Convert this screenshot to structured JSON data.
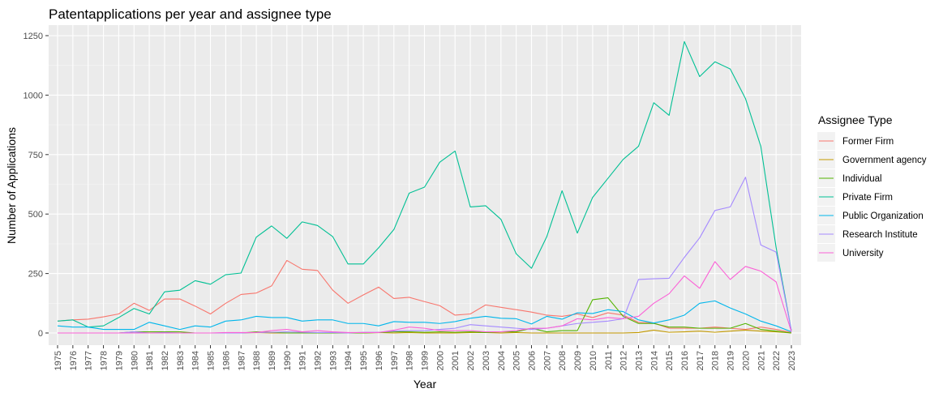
{
  "chart_data": {
    "type": "line",
    "title": "Patentapplications per year and assignee type",
    "xlabel": "Year",
    "ylabel": "Number of Applications",
    "ylim": [
      -50,
      1280
    ],
    "yticks": [
      0,
      250,
      500,
      750,
      1000,
      1250
    ],
    "grid": true,
    "legend_title": "Assignee Type",
    "legend_position": "right",
    "x": [
      1975,
      1976,
      1977,
      1978,
      1979,
      1980,
      1981,
      1982,
      1983,
      1984,
      1985,
      1986,
      1987,
      1988,
      1989,
      1990,
      1991,
      1992,
      1993,
      1994,
      1995,
      1996,
      1997,
      1998,
      1999,
      2000,
      2001,
      2002,
      2003,
      2004,
      2005,
      2006,
      2007,
      2008,
      2009,
      2010,
      2011,
      2012,
      2013,
      2014,
      2015,
      2016,
      2017,
      2018,
      2019,
      2020,
      2021,
      2022,
      2023
    ],
    "series": [
      {
        "name": "Former Firm",
        "color": "#F8766D",
        "values": [
          50,
          55,
          58,
          68,
          80,
          125,
          95,
          143,
          143,
          113,
          80,
          125,
          162,
          168,
          198,
          305,
          268,
          263,
          180,
          125,
          160,
          193,
          145,
          150,
          132,
          115,
          75,
          80,
          118,
          108,
          98,
          88,
          75,
          70,
          80,
          65,
          85,
          75,
          45,
          42,
          20,
          20,
          20,
          25,
          20,
          15,
          25,
          15,
          2
        ]
      },
      {
        "name": "Government agency",
        "color": "#C49A00",
        "values": [
          0,
          0,
          0,
          0,
          0,
          0,
          0,
          0,
          0,
          0,
          0,
          0,
          0,
          2,
          0,
          0,
          0,
          0,
          0,
          0,
          0,
          2,
          0,
          2,
          0,
          0,
          0,
          2,
          2,
          0,
          2,
          0,
          0,
          0,
          0,
          0,
          0,
          0,
          2,
          12,
          3,
          5,
          8,
          3,
          8,
          12,
          8,
          5,
          0
        ]
      },
      {
        "name": "Individual",
        "color": "#53B400",
        "values": [
          0,
          0,
          0,
          0,
          0,
          5,
          5,
          5,
          5,
          0,
          0,
          0,
          0,
          5,
          3,
          0,
          0,
          0,
          0,
          0,
          0,
          2,
          5,
          5,
          3,
          5,
          3,
          5,
          2,
          5,
          5,
          20,
          5,
          10,
          10,
          140,
          148,
          70,
          40,
          40,
          25,
          25,
          20,
          20,
          20,
          40,
          15,
          8,
          0
        ]
      },
      {
        "name": "Private Firm",
        "color": "#00C094",
        "values": [
          50,
          55,
          25,
          30,
          65,
          103,
          80,
          173,
          180,
          220,
          205,
          245,
          252,
          403,
          450,
          398,
          467,
          452,
          405,
          290,
          290,
          358,
          435,
          588,
          613,
          718,
          765,
          530,
          535,
          478,
          333,
          272,
          405,
          598,
          420,
          570,
          650,
          730,
          785,
          968,
          915,
          1225,
          1078,
          1140,
          1110,
          985,
          785,
          360,
          10
        ]
      },
      {
        "name": "Public Organization",
        "color": "#00B6EB",
        "values": [
          30,
          25,
          25,
          15,
          15,
          15,
          45,
          30,
          15,
          30,
          25,
          50,
          55,
          70,
          65,
          65,
          50,
          55,
          55,
          40,
          40,
          30,
          48,
          45,
          45,
          40,
          48,
          62,
          70,
          62,
          60,
          38,
          70,
          58,
          85,
          82,
          98,
          90,
          55,
          42,
          55,
          75,
          125,
          135,
          105,
          80,
          50,
          30,
          5
        ]
      },
      {
        "name": "Research Institute",
        "color": "#A58AFF",
        "values": [
          0,
          0,
          0,
          0,
          0,
          5,
          0,
          2,
          0,
          0,
          0,
          0,
          0,
          2,
          3,
          5,
          3,
          2,
          2,
          0,
          3,
          3,
          8,
          10,
          10,
          15,
          20,
          35,
          30,
          25,
          20,
          15,
          20,
          30,
          40,
          45,
          50,
          60,
          225,
          228,
          230,
          318,
          400,
          515,
          530,
          655,
          370,
          340,
          10
        ]
      },
      {
        "name": "University",
        "color": "#FB61D7",
        "values": [
          0,
          0,
          0,
          0,
          0,
          0,
          0,
          0,
          0,
          0,
          0,
          2,
          2,
          2,
          10,
          15,
          5,
          10,
          5,
          2,
          2,
          2,
          12,
          25,
          20,
          10,
          10,
          10,
          5,
          5,
          10,
          20,
          20,
          30,
          60,
          55,
          65,
          60,
          70,
          125,
          165,
          240,
          188,
          300,
          225,
          280,
          260,
          215,
          5
        ]
      }
    ]
  }
}
